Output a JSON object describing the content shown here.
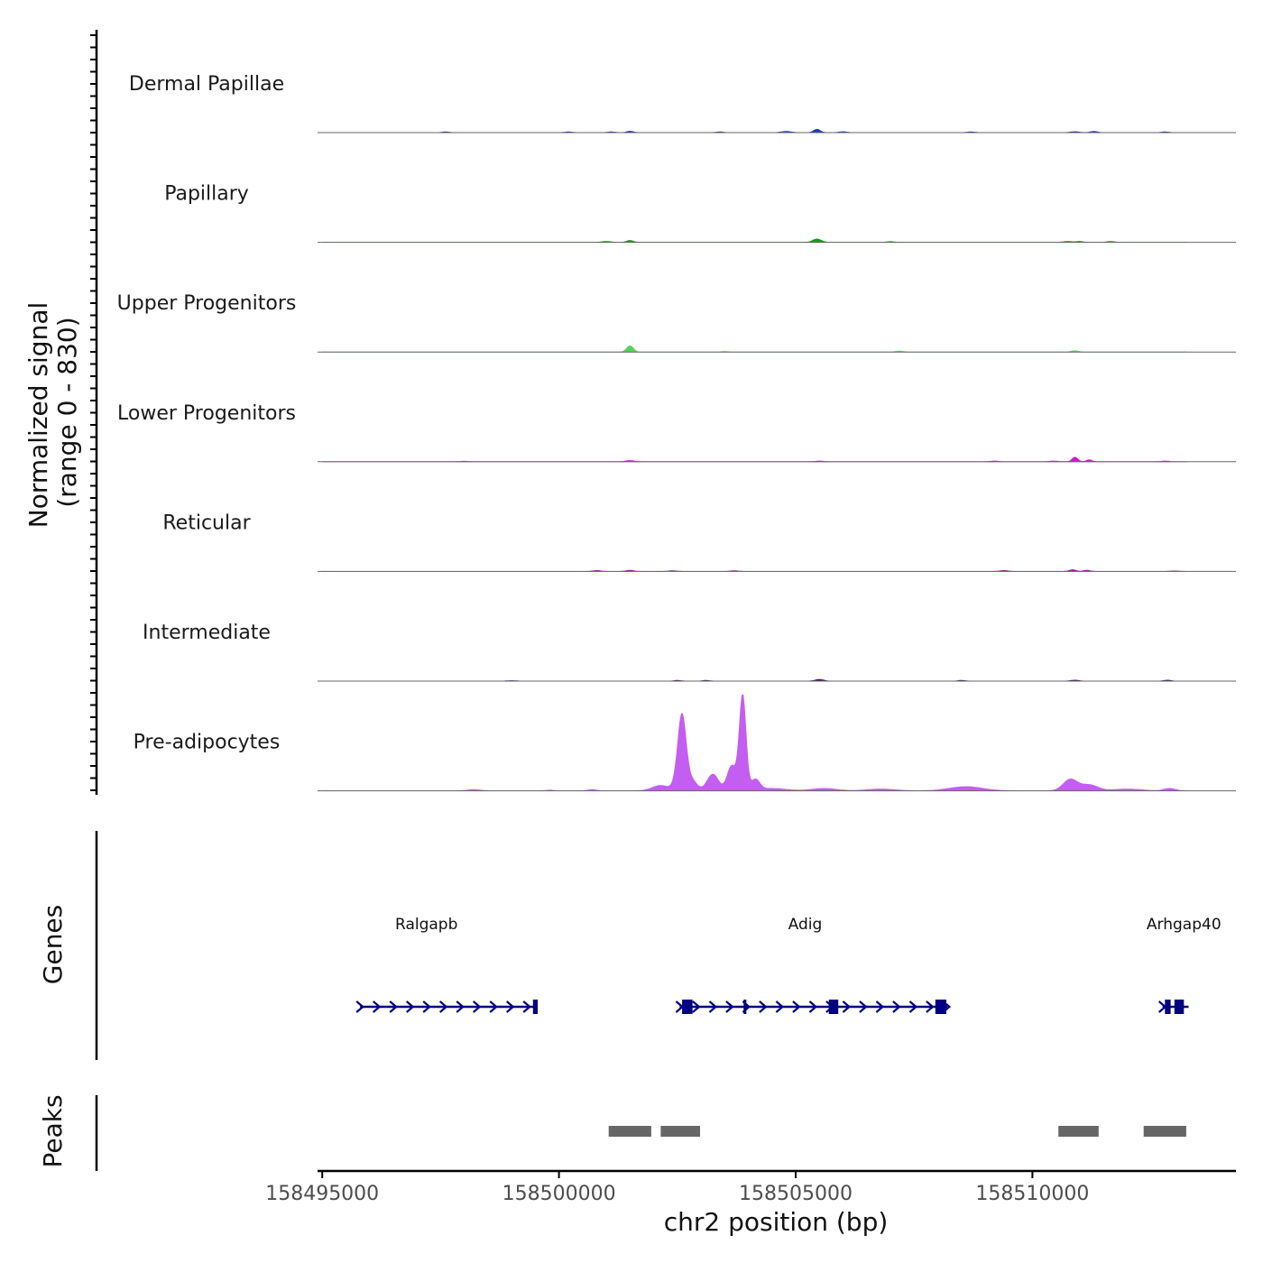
{
  "chart_data": {
    "type": "area",
    "chromosome": "chr2",
    "xlabel": "chr2 position (bp)",
    "xlim": [
      158494900,
      158514300
    ],
    "x_ticks": [
      "158495000",
      "158500000",
      "158505000",
      "158510000"
    ],
    "coverage": {
      "ylabel_line1": "Normalized signal",
      "ylabel_line2": "(range 0 - 830)",
      "ylim": [
        0,
        830
      ],
      "tracks": [
        {
          "name": "Dermal Papillae",
          "color": "#1f3cb4",
          "peaks": [
            [
              158497600,
              6,
              80
            ],
            [
              158500200,
              6,
              80
            ],
            [
              158501100,
              6,
              80
            ],
            [
              158501500,
              12,
              70
            ],
            [
              158503400,
              6,
              80
            ],
            [
              158504800,
              10,
              110
            ],
            [
              158505450,
              28,
              70
            ],
            [
              158506000,
              8,
              80
            ],
            [
              158508700,
              6,
              80
            ],
            [
              158510900,
              8,
              90
            ],
            [
              158511300,
              10,
              80
            ],
            [
              158512800,
              6,
              80
            ]
          ]
        },
        {
          "name": "Papillary",
          "color": "#1a9a1a",
          "peaks": [
            [
              158501000,
              8,
              90
            ],
            [
              158501500,
              16,
              70
            ],
            [
              158505450,
              28,
              90
            ],
            [
              158507000,
              6,
              80
            ],
            [
              158510750,
              8,
              90
            ],
            [
              158511000,
              8,
              70
            ],
            [
              158511650,
              8,
              80
            ]
          ]
        },
        {
          "name": "Upper Progenitors",
          "color": "#55d455",
          "peaks": [
            [
              158501500,
              52,
              70
            ],
            [
              158503500,
              4,
              80
            ],
            [
              158507200,
              8,
              80
            ],
            [
              158510900,
              10,
              80
            ]
          ]
        },
        {
          "name": "Lower Progenitors",
          "color": "#c81ec8",
          "peaks": [
            [
              158498000,
              4,
              80
            ],
            [
              158501500,
              10,
              90
            ],
            [
              158505500,
              6,
              80
            ],
            [
              158509200,
              6,
              80
            ],
            [
              158510450,
              6,
              80
            ],
            [
              158510900,
              38,
              60
            ],
            [
              158511200,
              16,
              60
            ],
            [
              158512800,
              6,
              80
            ]
          ]
        },
        {
          "name": "Reticular",
          "color": "#9a1a9a",
          "peaks": [
            [
              158500800,
              8,
              80
            ],
            [
              158501500,
              10,
              80
            ],
            [
              158502400,
              6,
              80
            ],
            [
              158503700,
              6,
              80
            ],
            [
              158509400,
              8,
              80
            ],
            [
              158510850,
              14,
              70
            ],
            [
              158511150,
              10,
              70
            ],
            [
              158513000,
              4,
              80
            ]
          ]
        },
        {
          "name": "Intermediate",
          "color": "#3c1464",
          "peaks": [
            [
              158499000,
              4,
              100
            ],
            [
              158502500,
              6,
              80
            ],
            [
              158503100,
              6,
              80
            ],
            [
              158505500,
              14,
              90
            ],
            [
              158508500,
              6,
              80
            ],
            [
              158510900,
              8,
              90
            ],
            [
              158512850,
              8,
              80
            ]
          ]
        },
        {
          "name": "Pre-adipocytes",
          "color": "#c35ef0",
          "peaks": [
            [
              158498200,
              10,
              140
            ],
            [
              158499800,
              6,
              80
            ],
            [
              158500700,
              10,
              90
            ],
            [
              158502150,
              45,
              180
            ],
            [
              158502500,
              60,
              90
            ],
            [
              158502600,
              600,
              85
            ],
            [
              158502800,
              90,
              110
            ],
            [
              158503250,
              140,
              120
            ],
            [
              158503650,
              210,
              95
            ],
            [
              158503880,
              800,
              70
            ],
            [
              158504150,
              90,
              90
            ],
            [
              158504500,
              20,
              300
            ],
            [
              158505600,
              20,
              260
            ],
            [
              158506800,
              15,
              300
            ],
            [
              158508600,
              35,
              350
            ],
            [
              158510800,
              95,
              150
            ],
            [
              158511200,
              50,
              180
            ],
            [
              158512000,
              15,
              300
            ],
            [
              158512900,
              20,
              120
            ]
          ]
        }
      ]
    },
    "genes": {
      "track_label": "Genes",
      "color": "#000080",
      "items": [
        {
          "name": "Ralgapb",
          "strand": "+",
          "start": 158495800,
          "end": 158499550,
          "exons": [
            [
              158499450,
              158499550
            ]
          ],
          "label_x": 158497200
        },
        {
          "name": "Adig",
          "strand": "+",
          "start": 158502550,
          "end": 158508200,
          "exons": [
            [
              158502600,
              158502820
            ],
            [
              158503900,
              158503940
            ],
            [
              158505700,
              158505900
            ],
            [
              158507950,
              158508180
            ]
          ],
          "label_x": 158505200
        },
        {
          "name": "Arhgap40",
          "strand": "+",
          "start": 158512750,
          "end": 158513300,
          "exons": [
            [
              158512800,
              158512920
            ],
            [
              158513000,
              158513200
            ]
          ],
          "label_x": 158513200
        }
      ]
    },
    "peaks_track": {
      "track_label": "Peaks",
      "color": "#666666",
      "regions": [
        [
          158501050,
          158501950
        ],
        [
          158502150,
          158502980
        ],
        [
          158510550,
          158511400
        ],
        [
          158512350,
          158513250
        ]
      ]
    }
  }
}
